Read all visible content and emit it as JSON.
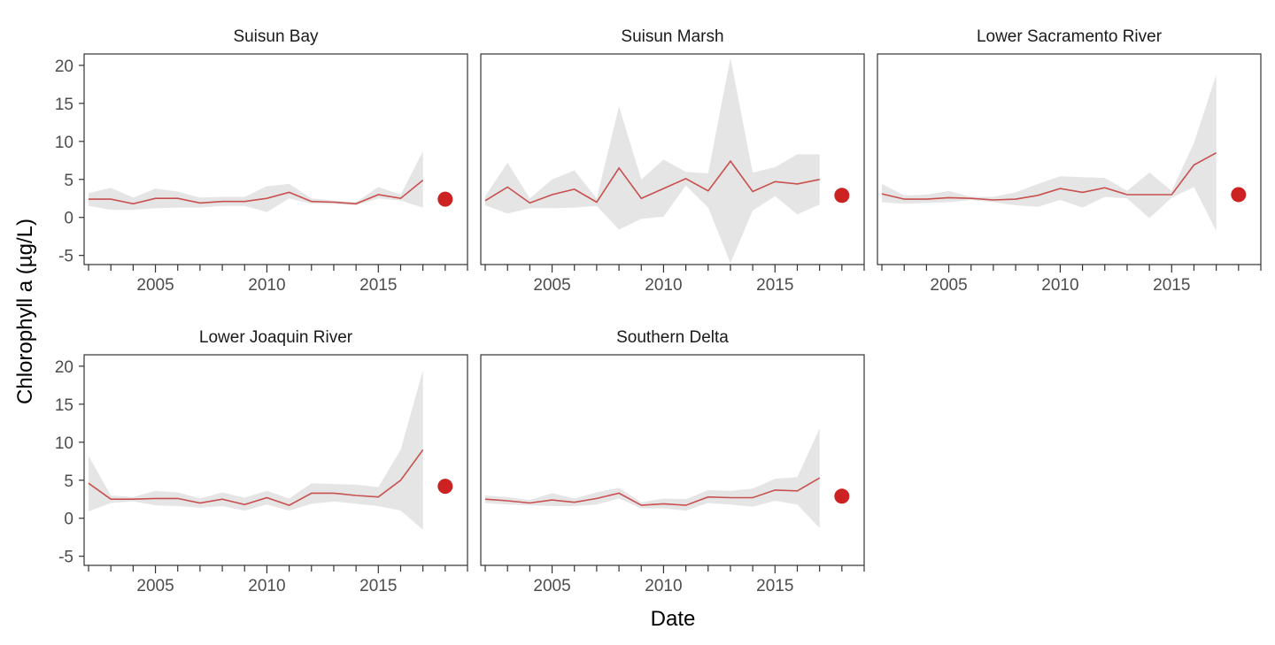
{
  "chart_data": {
    "type": "line",
    "xlabel": "Date",
    "ylabel": "Chlorophyll a (µg/L)",
    "ylim": [
      -6.2,
      21.5
    ],
    "xlim": [
      2001.8,
      2019
    ],
    "y_ticks": [
      -5,
      0,
      5,
      10,
      15,
      20
    ],
    "x_ticks": [
      2005,
      2010,
      2015
    ],
    "grid": false,
    "colors": {
      "line": "#c8504f",
      "point": "#cc2222",
      "band": "#e5e5e5"
    },
    "panels": [
      {
        "title": "Suisun Bay",
        "x": [
          2002,
          2003,
          2004,
          2005,
          2006,
          2007,
          2008,
          2009,
          2010,
          2011,
          2012,
          2013,
          2014,
          2015,
          2016,
          2017
        ],
        "mean": [
          2.4,
          2.4,
          1.8,
          2.5,
          2.5,
          1.9,
          2.1,
          2.1,
          2.5,
          3.3,
          2.1,
          2.0,
          1.8,
          3.0,
          2.5,
          4.9
        ],
        "lower": [
          1.5,
          1.0,
          1.0,
          1.2,
          1.3,
          1.3,
          1.5,
          1.5,
          0.7,
          2.5,
          1.8,
          1.8,
          1.6,
          2.5,
          2.2,
          1.3
        ],
        "upper": [
          3.2,
          3.9,
          2.6,
          3.8,
          3.4,
          2.6,
          2.7,
          2.7,
          4.1,
          4.4,
          2.5,
          2.2,
          2.0,
          4.0,
          3.0,
          8.7
        ],
        "last_point": {
          "x": 2018,
          "y": 2.4
        }
      },
      {
        "title": "Suisun Marsh",
        "x": [
          2002,
          2003,
          2004,
          2005,
          2006,
          2007,
          2008,
          2009,
          2010,
          2011,
          2012,
          2013,
          2014,
          2015,
          2016,
          2017
        ],
        "mean": [
          2.2,
          4.0,
          1.9,
          3.0,
          3.7,
          2.0,
          6.5,
          2.5,
          3.8,
          5.1,
          3.5,
          7.4,
          3.4,
          4.7,
          4.4,
          5.0
        ],
        "lower": [
          1.6,
          0.5,
          1.2,
          1.2,
          1.3,
          1.5,
          -1.6,
          -0.2,
          0.1,
          4.2,
          1.3,
          -6.0,
          0.9,
          2.8,
          0.4,
          1.7
        ],
        "upper": [
          2.8,
          7.2,
          2.5,
          5.0,
          6.2,
          2.5,
          14.6,
          5.0,
          7.6,
          6.0,
          5.8,
          21.0,
          5.9,
          6.6,
          8.3,
          8.3
        ],
        "last_point": {
          "x": 2018,
          "y": 2.9
        }
      },
      {
        "title": "Lower Sacramento River",
        "x": [
          2002,
          2003,
          2004,
          2005,
          2006,
          2007,
          2008,
          2009,
          2010,
          2011,
          2012,
          2013,
          2014,
          2015,
          2016,
          2017
        ],
        "mean": [
          3.1,
          2.4,
          2.4,
          2.6,
          2.5,
          2.3,
          2.4,
          2.9,
          3.8,
          3.3,
          3.9,
          3.0,
          3.0,
          3.0,
          6.9,
          8.5
        ],
        "lower": [
          2.0,
          1.8,
          1.9,
          2.0,
          2.3,
          2.0,
          1.6,
          1.4,
          2.3,
          1.3,
          2.7,
          2.5,
          -0.1,
          2.6,
          4.0,
          -1.8
        ],
        "upper": [
          4.4,
          2.9,
          3.0,
          3.5,
          2.7,
          2.7,
          3.3,
          4.4,
          5.4,
          5.3,
          5.2,
          3.5,
          5.9,
          3.5,
          9.8,
          18.8
        ],
        "last_point": {
          "x": 2018,
          "y": 3.0
        }
      },
      {
        "title": "Lower Joaquin River",
        "x": [
          2002,
          2003,
          2004,
          2005,
          2006,
          2007,
          2008,
          2009,
          2010,
          2011,
          2012,
          2013,
          2014,
          2015,
          2016,
          2017
        ],
        "mean": [
          4.6,
          2.5,
          2.5,
          2.6,
          2.6,
          2.0,
          2.5,
          1.8,
          2.7,
          1.7,
          3.3,
          3.3,
          3.0,
          2.8,
          5.0,
          9.0
        ],
        "lower": [
          0.9,
          2.0,
          2.2,
          1.7,
          1.6,
          1.4,
          1.6,
          1.0,
          1.8,
          1.0,
          1.9,
          2.2,
          1.9,
          1.6,
          1.0,
          -1.5
        ],
        "upper": [
          8.2,
          3.0,
          2.8,
          3.6,
          3.4,
          2.6,
          3.4,
          2.7,
          3.6,
          2.6,
          4.6,
          4.5,
          4.4,
          4.1,
          9.0,
          19.5
        ],
        "last_point": {
          "x": 2018,
          "y": 4.2
        }
      },
      {
        "title": "Southern Delta",
        "x": [
          2002,
          2003,
          2004,
          2005,
          2006,
          2007,
          2008,
          2009,
          2010,
          2011,
          2012,
          2013,
          2014,
          2015,
          2016,
          2017
        ],
        "mean": [
          2.5,
          2.3,
          2.0,
          2.4,
          2.1,
          2.6,
          3.3,
          1.7,
          1.9,
          1.7,
          2.8,
          2.7,
          2.7,
          3.7,
          3.6,
          5.3
        ],
        "lower": [
          2.0,
          1.8,
          1.7,
          1.6,
          1.6,
          1.8,
          2.6,
          1.3,
          1.3,
          1.0,
          2.0,
          1.8,
          1.5,
          2.3,
          1.8,
          -1.3
        ],
        "upper": [
          3.0,
          2.8,
          2.4,
          3.3,
          2.6,
          3.4,
          4.0,
          2.1,
          2.6,
          2.5,
          3.7,
          3.6,
          3.9,
          5.2,
          5.4,
          11.8
        ],
        "last_point": {
          "x": 2018,
          "y": 2.9
        }
      }
    ]
  }
}
